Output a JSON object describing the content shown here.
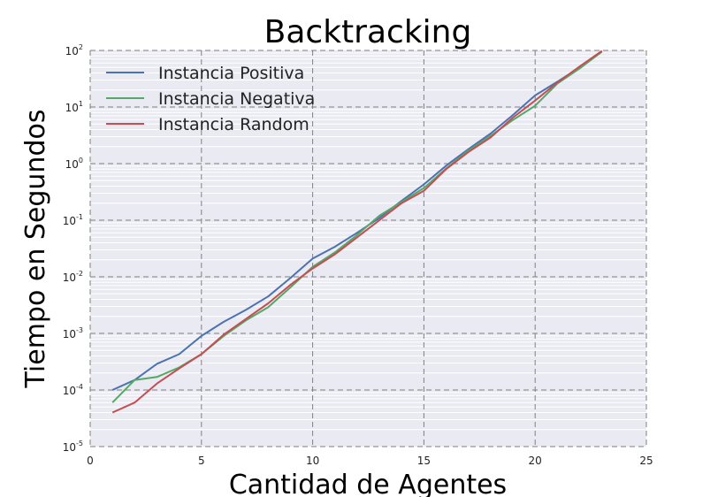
{
  "chart_data": {
    "type": "line",
    "title": "Backtracking",
    "xlabel": "Cantidad de Agentes",
    "ylabel": "Tiempo en Segundos",
    "xlim": [
      0,
      25
    ],
    "ylim": [
      1e-05,
      100
    ],
    "yscale": "log",
    "grid": true,
    "legend_position": "top-left",
    "x_ticks": [
      "0",
      "5",
      "10",
      "15",
      "20",
      "25"
    ],
    "y_ticks": [
      {
        "base": "10",
        "exp": "-5"
      },
      {
        "base": "10",
        "exp": "-4"
      },
      {
        "base": "10",
        "exp": "-3"
      },
      {
        "base": "10",
        "exp": "-2"
      },
      {
        "base": "10",
        "exp": "-1"
      },
      {
        "base": "10",
        "exp": "0"
      },
      {
        "base": "10",
        "exp": "1"
      },
      {
        "base": "10",
        "exp": "2"
      }
    ],
    "x": [
      1,
      2,
      3,
      4,
      5,
      6,
      7,
      8,
      9,
      10,
      11,
      12,
      13,
      14,
      15,
      16,
      17,
      18,
      19,
      20,
      21,
      22,
      23
    ],
    "series": [
      {
        "name": "Instancia Positiva",
        "color": "#4c72b0",
        "values": [
          0.0001,
          0.00015,
          0.00029,
          0.00043,
          0.0009,
          0.0016,
          0.0026,
          0.0045,
          0.0095,
          0.021,
          0.034,
          0.06,
          0.11,
          0.22,
          0.43,
          0.92,
          1.8,
          3.4,
          7.2,
          16,
          28,
          50,
          95
        ]
      },
      {
        "name": "Instancia Negativa",
        "color": "#55a868",
        "values": [
          6e-05,
          0.00015,
          0.00017,
          0.00025,
          0.00043,
          0.0009,
          0.0017,
          0.0029,
          0.0065,
          0.015,
          0.027,
          0.055,
          0.12,
          0.21,
          0.37,
          0.82,
          1.7,
          3.1,
          5.9,
          10.5,
          26,
          48,
          95
        ]
      },
      {
        "name": "Instancia Random",
        "color": "#c44e52",
        "values": [
          4e-05,
          6e-05,
          0.00013,
          0.00024,
          0.00043,
          0.00095,
          0.0018,
          0.0034,
          0.0072,
          0.014,
          0.025,
          0.05,
          0.1,
          0.2,
          0.33,
          0.8,
          1.6,
          2.9,
          6.5,
          13,
          27,
          52,
          98
        ]
      }
    ]
  }
}
